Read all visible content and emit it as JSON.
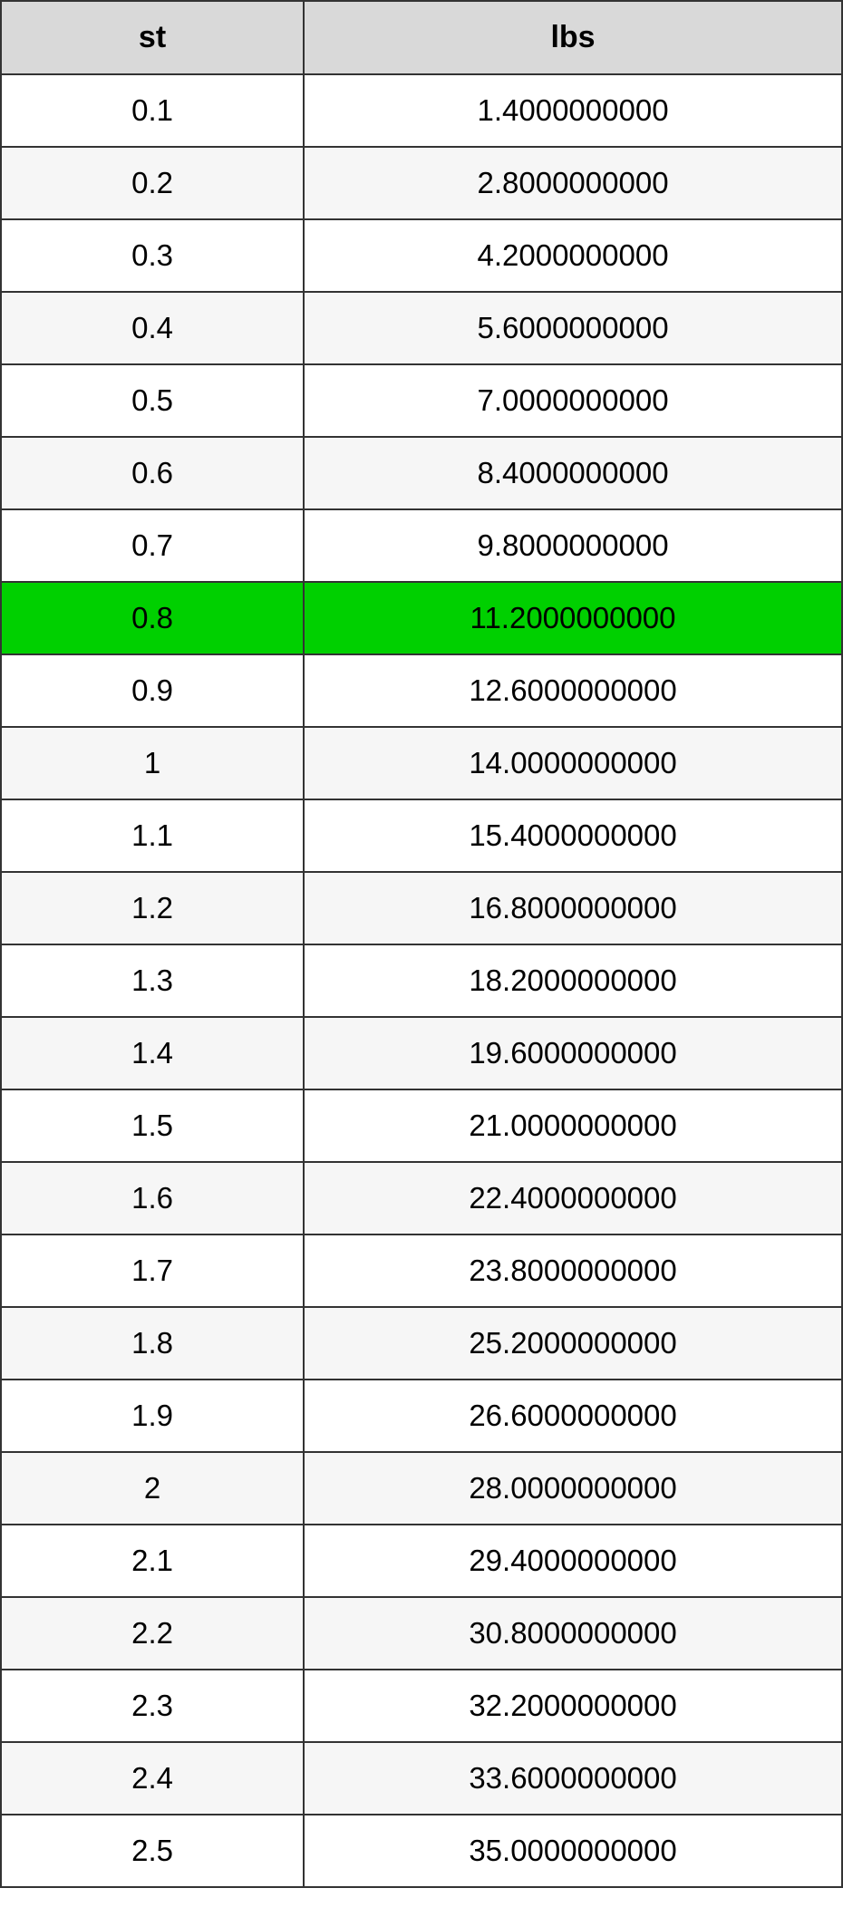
{
  "table": {
    "columns": [
      "st",
      "lbs"
    ],
    "header_bg": "#d9d9d9",
    "row_colors": {
      "odd": "#ffffff",
      "even": "#f6f6f6",
      "highlight": "#00d000"
    },
    "border_color": "#333333",
    "text_color": "#000000",
    "header_fontsize": 34,
    "cell_fontsize": 33,
    "highlighted_row_index": 7,
    "rows": [
      [
        "0.1",
        "1.4000000000"
      ],
      [
        "0.2",
        "2.8000000000"
      ],
      [
        "0.3",
        "4.2000000000"
      ],
      [
        "0.4",
        "5.6000000000"
      ],
      [
        "0.5",
        "7.0000000000"
      ],
      [
        "0.6",
        "8.4000000000"
      ],
      [
        "0.7",
        "9.8000000000"
      ],
      [
        "0.8",
        "11.2000000000"
      ],
      [
        "0.9",
        "12.6000000000"
      ],
      [
        "1",
        "14.0000000000"
      ],
      [
        "1.1",
        "15.4000000000"
      ],
      [
        "1.2",
        "16.8000000000"
      ],
      [
        "1.3",
        "18.2000000000"
      ],
      [
        "1.4",
        "19.6000000000"
      ],
      [
        "1.5",
        "21.0000000000"
      ],
      [
        "1.6",
        "22.4000000000"
      ],
      [
        "1.7",
        "23.8000000000"
      ],
      [
        "1.8",
        "25.2000000000"
      ],
      [
        "1.9",
        "26.6000000000"
      ],
      [
        "2",
        "28.0000000000"
      ],
      [
        "2.1",
        "29.4000000000"
      ],
      [
        "2.2",
        "30.8000000000"
      ],
      [
        "2.3",
        "32.2000000000"
      ],
      [
        "2.4",
        "33.6000000000"
      ],
      [
        "2.5",
        "35.0000000000"
      ]
    ]
  }
}
